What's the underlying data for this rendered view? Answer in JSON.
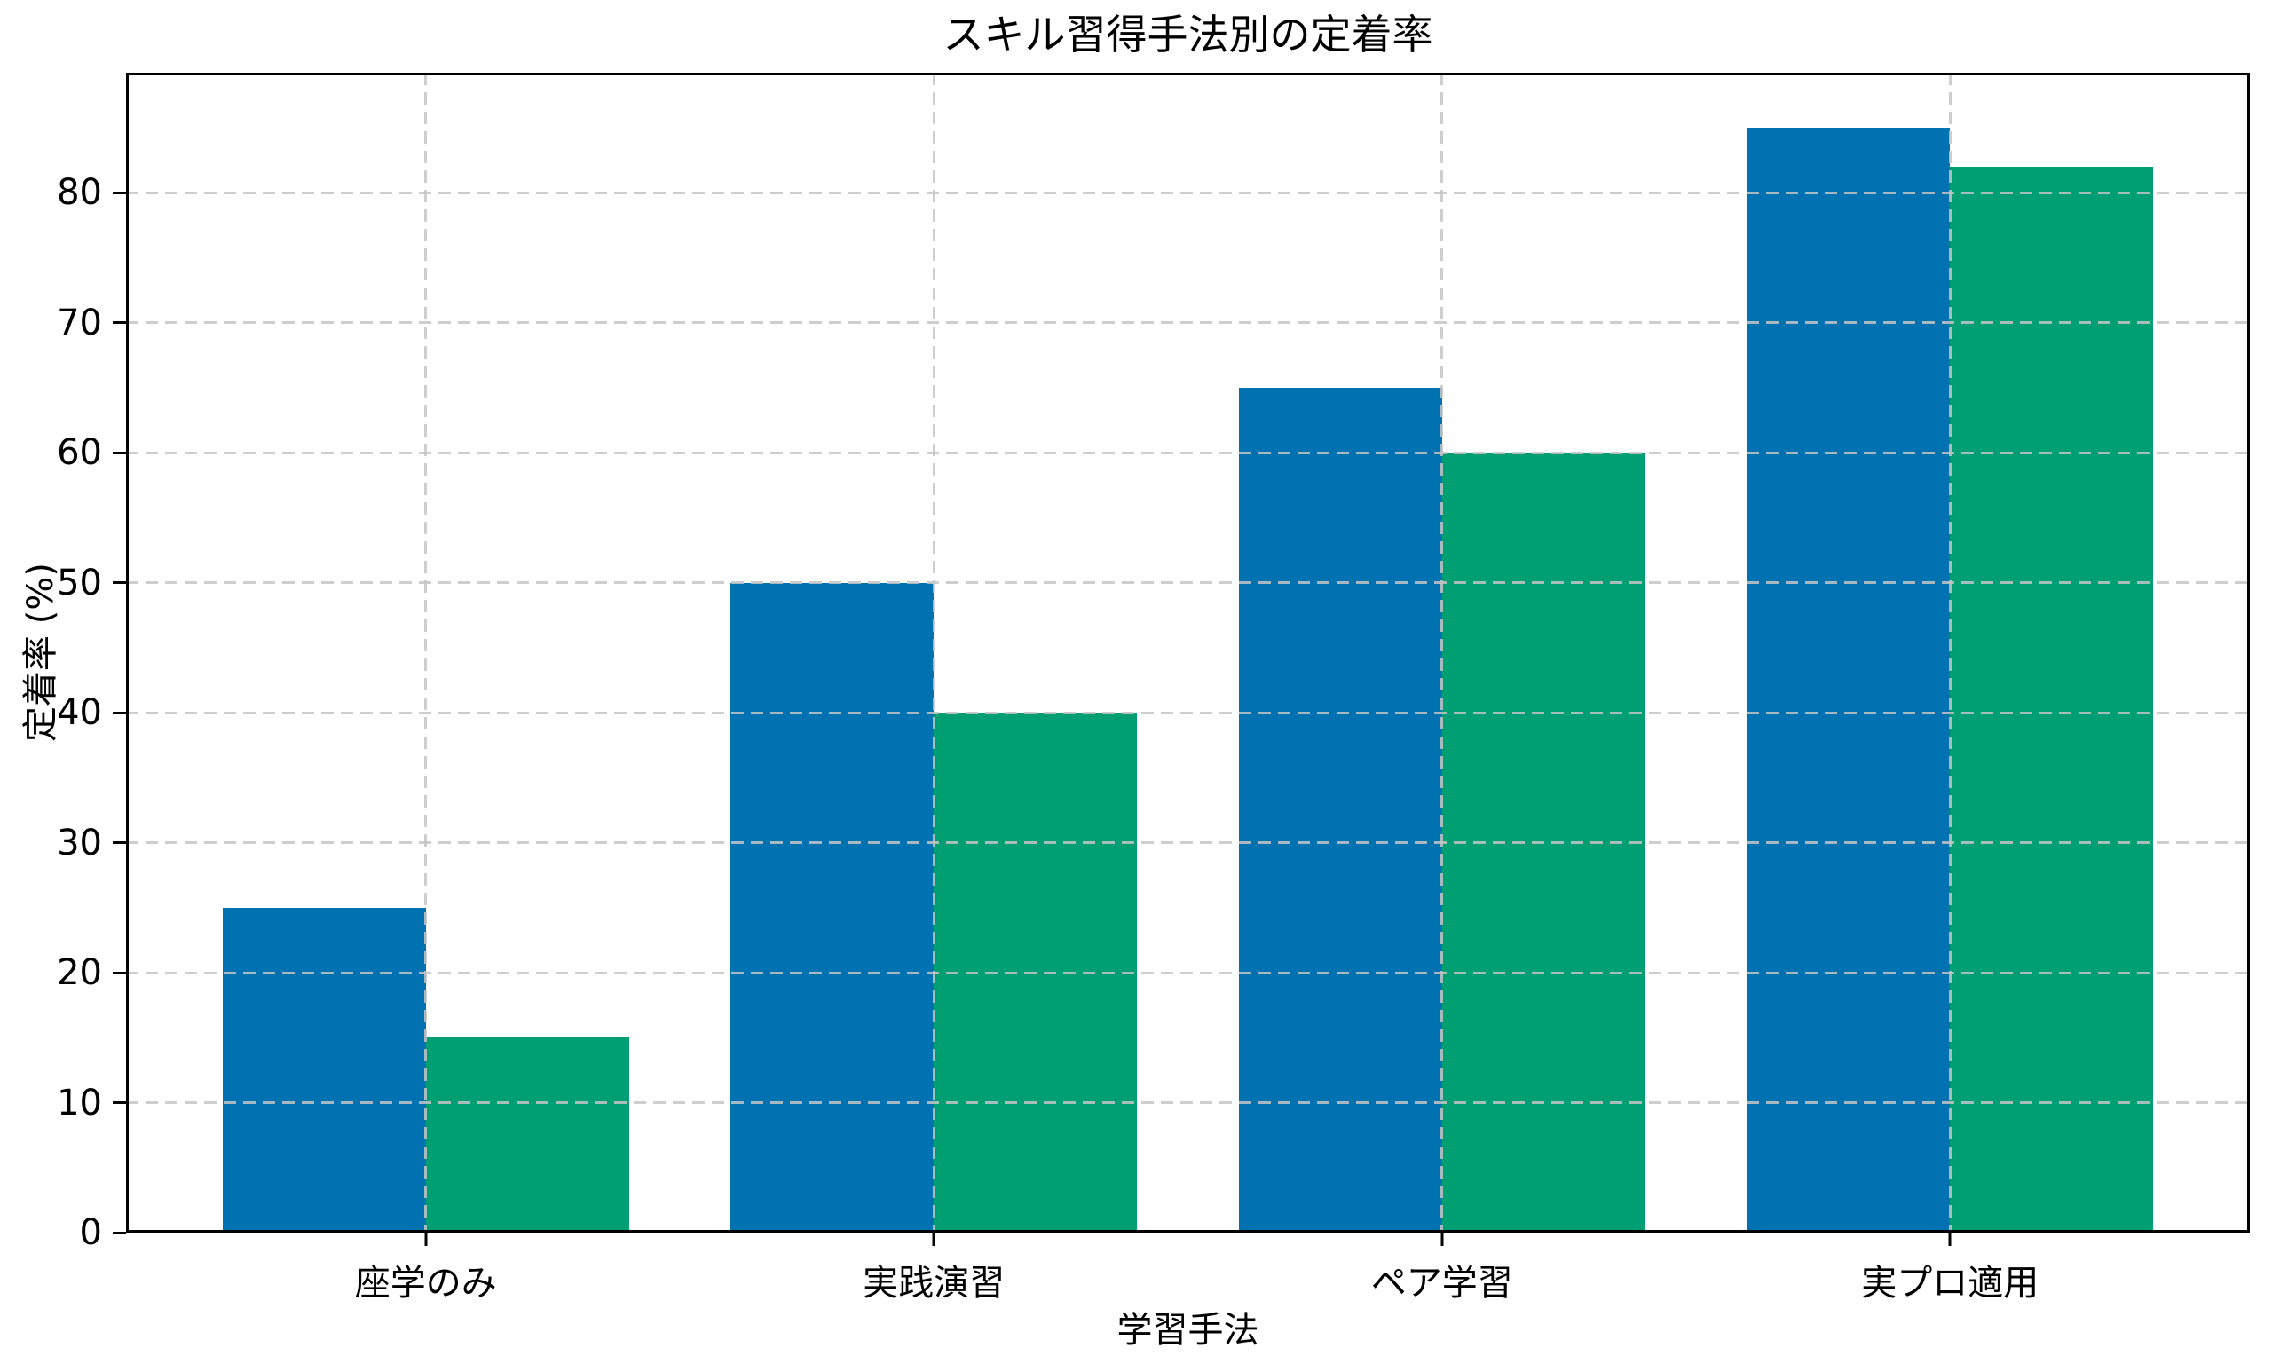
{
  "chart_data": {
    "type": "bar",
    "title": "スキル習得手法別の定着率",
    "xlabel": "学習手法",
    "ylabel": "定着率 (%)",
    "categories": [
      "座学のみ",
      "実践演習",
      "ペア学習",
      "実プロ適用"
    ],
    "series": [
      {
        "name": "retention-series-blue",
        "color": "#0072B2",
        "values": [
          25,
          50,
          65,
          85
        ]
      },
      {
        "name": "retention-series-green",
        "color": "#009E73",
        "values": [
          15,
          40,
          60,
          82
        ]
      }
    ],
    "ylim": [
      0,
      89.25
    ],
    "yticks": [
      0,
      10,
      20,
      30,
      40,
      50,
      60,
      70,
      80
    ],
    "xlim": [
      -0.59,
      3.59
    ],
    "bar_width": 0.4,
    "bar_offsets": [
      -0.2,
      0.2
    ],
    "grid": "both-axes-dashed",
    "legend": "none",
    "background": "#ffffff"
  }
}
